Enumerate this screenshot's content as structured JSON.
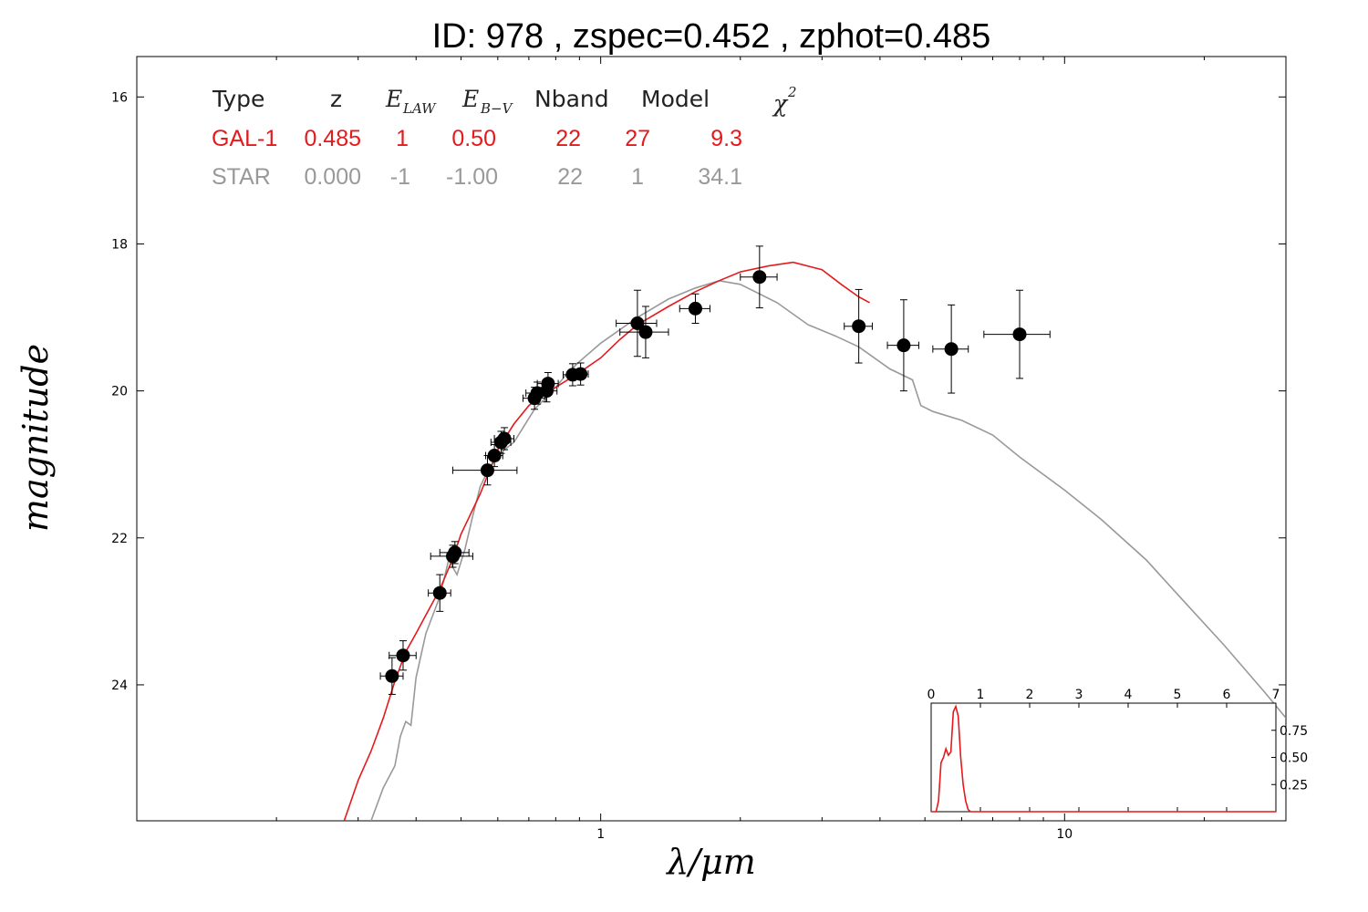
{
  "title": "ID:  978   , zspec=0.452 , zphot=0.485",
  "table": {
    "headers": [
      "Type",
      "z",
      "E",
      "LAW",
      "E",
      "B−V",
      "Nband",
      "Model",
      "χ",
      "2"
    ],
    "rows": [
      {
        "type": "GAL-1",
        "z": "0.485",
        "elaw": "1",
        "ebv": "0.50",
        "nband": "22",
        "model": "27",
        "chi2": "9.3"
      },
      {
        "type": "STAR",
        "z": "0.000",
        "elaw": "-1",
        "ebv": "-1.00",
        "nband": "22",
        "model": "1",
        "chi2": "34.1"
      }
    ]
  },
  "colors": {
    "galaxy": "#e41a1c",
    "star": "#999999",
    "points": "#000000"
  },
  "chart_data": {
    "type": "scatter",
    "xlabel": "λ/μm",
    "ylabel": "magnitude",
    "xscale": "log",
    "xlim": [
      0.1,
      30
    ],
    "ylim": [
      25.85,
      15.45
    ],
    "xticks": [
      {
        "v": 1,
        "label": "1"
      },
      {
        "v": 10,
        "label": "10"
      }
    ],
    "yticks": [
      {
        "v": 16,
        "label": "16"
      },
      {
        "v": 18,
        "label": "18"
      },
      {
        "v": 20,
        "label": "20"
      },
      {
        "v": 22,
        "label": "22"
      },
      {
        "v": 24,
        "label": "24"
      }
    ],
    "grid": false,
    "points": [
      {
        "x": 0.355,
        "y": 23.88,
        "xe": 0.02,
        "ye": 0.25
      },
      {
        "x": 0.375,
        "y": 23.6,
        "xe": 0.025,
        "ye": 0.2
      },
      {
        "x": 0.45,
        "y": 22.75,
        "xe": 0.025,
        "ye": 0.25
      },
      {
        "x": 0.48,
        "y": 22.25,
        "xe": 0.05,
        "ye": 0.15
      },
      {
        "x": 0.485,
        "y": 22.2,
        "xe": 0.035,
        "ye": 0.15
      },
      {
        "x": 0.57,
        "y": 21.08,
        "xe": 0.09,
        "ye": 0.2
      },
      {
        "x": 0.59,
        "y": 20.88,
        "xe": 0.025,
        "ye": 0.15
      },
      {
        "x": 0.61,
        "y": 20.7,
        "xe": 0.03,
        "ye": 0.15
      },
      {
        "x": 0.62,
        "y": 20.65,
        "xe": 0.03,
        "ye": 0.15
      },
      {
        "x": 0.72,
        "y": 20.1,
        "xe": 0.04,
        "ye": 0.15
      },
      {
        "x": 0.73,
        "y": 20.03,
        "xe": 0.04,
        "ye": 0.15
      },
      {
        "x": 0.765,
        "y": 20.0,
        "xe": 0.04,
        "ye": 0.15
      },
      {
        "x": 0.77,
        "y": 19.9,
        "xe": 0.04,
        "ye": 0.15
      },
      {
        "x": 0.87,
        "y": 19.78,
        "xe": 0.04,
        "ye": 0.15
      },
      {
        "x": 0.905,
        "y": 19.77,
        "xe": 0.035,
        "ye": 0.15
      },
      {
        "x": 1.2,
        "y": 19.08,
        "xe": 0.12,
        "ye": 0.45
      },
      {
        "x": 1.25,
        "y": 19.2,
        "xe": 0.15,
        "ye": 0.35
      },
      {
        "x": 1.6,
        "y": 18.88,
        "xe": 0.12,
        "ye": 0.2
      },
      {
        "x": 2.2,
        "y": 18.45,
        "xe": 0.2,
        "ye": 0.42
      },
      {
        "x": 3.6,
        "y": 19.12,
        "xe": 0.25,
        "ye": 0.5
      },
      {
        "x": 4.5,
        "y": 19.38,
        "xe": 0.35,
        "ye": 0.62
      },
      {
        "x": 5.7,
        "y": 19.43,
        "xe": 0.5,
        "ye": 0.6
      },
      {
        "x": 8.0,
        "y": 19.23,
        "xe": 1.3,
        "ye": 0.6
      }
    ],
    "galaxy_model": [
      [
        0.28,
        25.85
      ],
      [
        0.3,
        25.3
      ],
      [
        0.32,
        24.9
      ],
      [
        0.34,
        24.45
      ],
      [
        0.36,
        23.95
      ],
      [
        0.38,
        23.55
      ],
      [
        0.4,
        23.3
      ],
      [
        0.42,
        23.05
      ],
      [
        0.45,
        22.7
      ],
      [
        0.48,
        22.28
      ],
      [
        0.5,
        21.95
      ],
      [
        0.55,
        21.4
      ],
      [
        0.6,
        20.8
      ],
      [
        0.65,
        20.45
      ],
      [
        0.7,
        20.2
      ],
      [
        0.75,
        20.05
      ],
      [
        0.8,
        19.95
      ],
      [
        0.9,
        19.75
      ],
      [
        1.0,
        19.55
      ],
      [
        1.1,
        19.3
      ],
      [
        1.2,
        19.1
      ],
      [
        1.4,
        18.85
      ],
      [
        1.6,
        18.65
      ],
      [
        1.8,
        18.5
      ],
      [
        2.0,
        18.38
      ],
      [
        2.3,
        18.3
      ],
      [
        2.6,
        18.25
      ],
      [
        3.0,
        18.35
      ],
      [
        3.3,
        18.55
      ],
      [
        3.6,
        18.72
      ],
      [
        3.8,
        18.8
      ]
    ],
    "star_model": [
      [
        0.32,
        25.85
      ],
      [
        0.34,
        25.4
      ],
      [
        0.36,
        25.1
      ],
      [
        0.37,
        24.7
      ],
      [
        0.38,
        24.5
      ],
      [
        0.39,
        24.55
      ],
      [
        0.4,
        23.9
      ],
      [
        0.42,
        23.3
      ],
      [
        0.45,
        22.8
      ],
      [
        0.47,
        22.3
      ],
      [
        0.49,
        22.5
      ],
      [
        0.51,
        22.15
      ],
      [
        0.53,
        21.7
      ],
      [
        0.55,
        21.3
      ],
      [
        0.57,
        21.1
      ],
      [
        0.59,
        20.95
      ],
      [
        0.62,
        20.8
      ],
      [
        0.65,
        20.7
      ],
      [
        0.68,
        20.5
      ],
      [
        0.72,
        20.25
      ],
      [
        0.76,
        20.1
      ],
      [
        0.8,
        19.95
      ],
      [
        0.85,
        19.75
      ],
      [
        0.9,
        19.6
      ],
      [
        1.0,
        19.35
      ],
      [
        1.2,
        19.0
      ],
      [
        1.4,
        18.75
      ],
      [
        1.6,
        18.6
      ],
      [
        1.8,
        18.5
      ],
      [
        2.0,
        18.55
      ],
      [
        2.4,
        18.8
      ],
      [
        2.8,
        19.1
      ],
      [
        3.2,
        19.25
      ],
      [
        3.6,
        19.4
      ],
      [
        4.2,
        19.7
      ],
      [
        4.7,
        19.85
      ],
      [
        4.9,
        20.2
      ],
      [
        5.2,
        20.28
      ],
      [
        6.0,
        20.4
      ],
      [
        7.0,
        20.6
      ],
      [
        8.0,
        20.9
      ],
      [
        10.0,
        21.35
      ],
      [
        12.0,
        21.75
      ],
      [
        15.0,
        22.3
      ],
      [
        18.0,
        22.85
      ],
      [
        22.0,
        23.45
      ],
      [
        27.0,
        24.1
      ],
      [
        30.0,
        24.45
      ]
    ],
    "inset": {
      "xlim": [
        0,
        7
      ],
      "ylim": [
        0,
        1
      ],
      "xticks": [
        0,
        1,
        2,
        3,
        4,
        5,
        6,
        7
      ],
      "yticks": [
        {
          "v": 0.25,
          "label": "0.25"
        },
        {
          "v": 0.5,
          "label": "0.50"
        },
        {
          "v": 0.75,
          "label": "0.75"
        }
      ],
      "pdf": [
        [
          0,
          0
        ],
        [
          0.1,
          0.0
        ],
        [
          0.15,
          0.1
        ],
        [
          0.2,
          0.45
        ],
        [
          0.25,
          0.5
        ],
        [
          0.3,
          0.58
        ],
        [
          0.35,
          0.52
        ],
        [
          0.4,
          0.55
        ],
        [
          0.45,
          0.92
        ],
        [
          0.5,
          0.97
        ],
        [
          0.55,
          0.88
        ],
        [
          0.6,
          0.5
        ],
        [
          0.65,
          0.25
        ],
        [
          0.7,
          0.1
        ],
        [
          0.75,
          0.02
        ],
        [
          0.8,
          0.0
        ],
        [
          7,
          0.0
        ]
      ]
    }
  }
}
